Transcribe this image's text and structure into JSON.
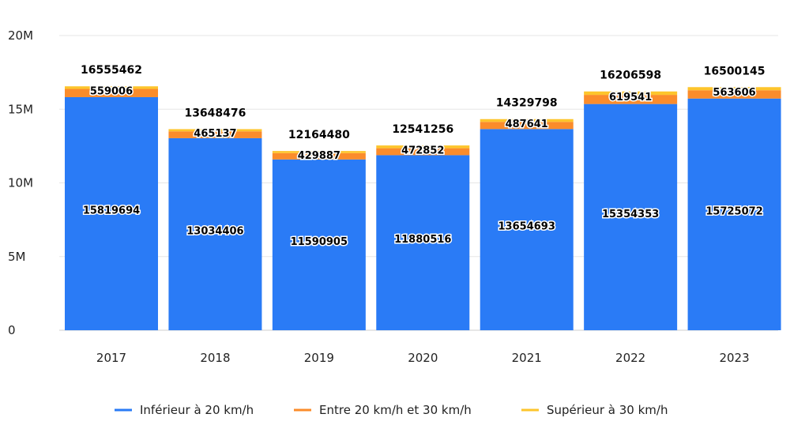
{
  "chart_data": {
    "type": "bar",
    "stacked": true,
    "categories": [
      "2017",
      "2018",
      "2019",
      "2020",
      "2021",
      "2022",
      "2023"
    ],
    "series": [
      {
        "name": "Inférieur à 20 km/h",
        "color": "#2a7bf6",
        "values": [
          15819694,
          13034406,
          11590905,
          11880516,
          13654693,
          15354353,
          15725072
        ]
      },
      {
        "name": "Entre 20 km/h et 30 km/h",
        "color": "#fb8c2b",
        "values": [
          559006,
          465137,
          429887,
          472852,
          487641,
          619541,
          563606
        ]
      },
      {
        "name": "Supérieur à 30 km/h",
        "color": "#fdc52c",
        "values": [
          176762,
          148933,
          143688,
          187888,
          187464,
          232704,
          211467
        ]
      }
    ],
    "data_labels": {
      "series_0": [
        "15819694",
        "13034406",
        "11590905",
        "11880516",
        "13654693",
        "15354353",
        "15725072"
      ],
      "series_1": [
        "559006",
        "465137",
        "429887",
        "472852",
        "487641",
        "619541",
        "563606"
      ]
    },
    "totals": [
      "16555462",
      "13648476",
      "12164480",
      "12541256",
      "14329798",
      "16206598",
      "16500145"
    ],
    "total_values": [
      16555462,
      13648476,
      12164480,
      12541256,
      14329798,
      16206598,
      16500145
    ],
    "y_ticks": [
      0,
      5000000,
      10000000,
      15000000,
      20000000
    ],
    "y_tick_labels": [
      "0",
      "5M",
      "10M",
      "15M",
      "20M"
    ],
    "ylim": [
      0,
      20000000
    ],
    "grid": true,
    "legend_position": "bottom"
  }
}
